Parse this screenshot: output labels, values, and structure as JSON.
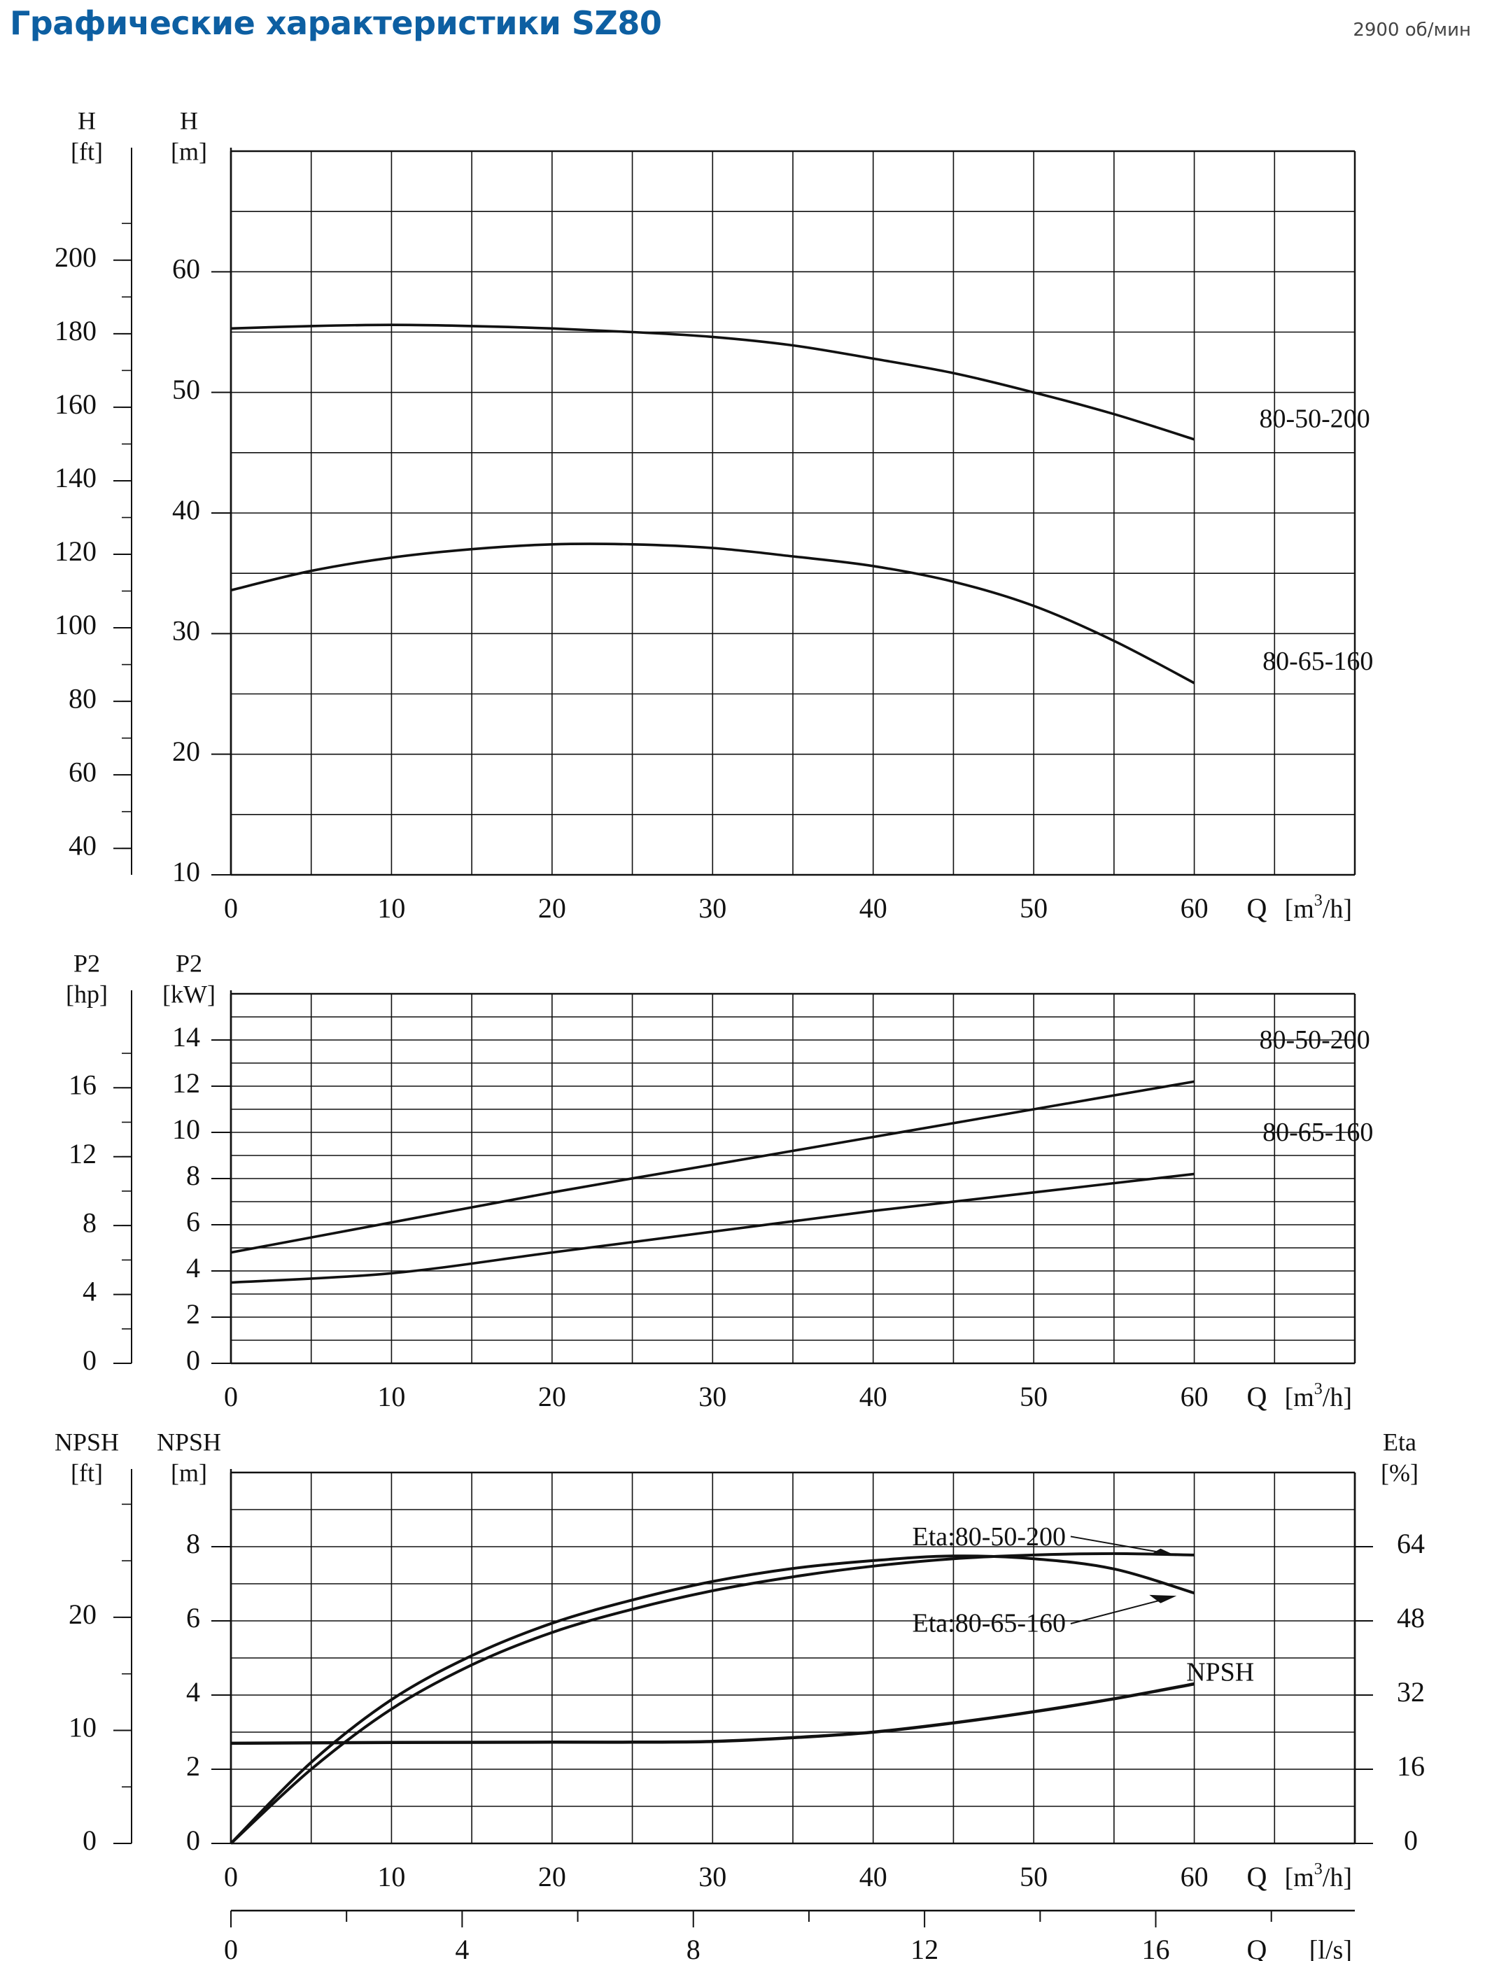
{
  "page": {
    "title": "Графические характеристики SZ80",
    "speed": "2900 об/мин"
  },
  "chart_data": [
    {
      "id": "head",
      "type": "line",
      "x_label": "Q[m3/h]",
      "x_ticks": [
        "0",
        "10",
        "20",
        "30",
        "40",
        "50",
        "60"
      ],
      "xlim": [
        0,
        70
      ],
      "y_label": "H [m]",
      "ylim": [
        10,
        70
      ],
      "y_ticks": [
        "10",
        "20",
        "30",
        "40",
        "50",
        "60"
      ],
      "y2_label": "H [ft]",
      "y2_ticks": [
        "40",
        "60",
        "80",
        "100",
        "120",
        "140",
        "160",
        "180",
        "200"
      ],
      "series": [
        {
          "name": "80-50-200",
          "label": "80-50-200",
          "points": [
            [
              0,
              55.3
            ],
            [
              5,
              55.5
            ],
            [
              10,
              55.6
            ],
            [
              15,
              55.5
            ],
            [
              20,
              55.3
            ],
            [
              25,
              55.0
            ],
            [
              30,
              54.6
            ],
            [
              35,
              53.9
            ],
            [
              40,
              52.8
            ],
            [
              45,
              51.6
            ],
            [
              50,
              50.0
            ],
            [
              55,
              48.2
            ],
            [
              60,
              46.1
            ]
          ]
        },
        {
          "name": "80-65-160",
          "label": "80-65-160",
          "points": [
            [
              0,
              33.6
            ],
            [
              5,
              35.2
            ],
            [
              10,
              36.3
            ],
            [
              15,
              37.0
            ],
            [
              20,
              37.4
            ],
            [
              25,
              37.4
            ],
            [
              30,
              37.1
            ],
            [
              35,
              36.4
            ],
            [
              40,
              35.6
            ],
            [
              45,
              34.3
            ],
            [
              50,
              32.3
            ],
            [
              55,
              29.4
            ],
            [
              60,
              25.9
            ]
          ]
        }
      ]
    },
    {
      "id": "power",
      "type": "line",
      "x_label": "Q[m3/h]",
      "x_ticks": [
        "0",
        "10",
        "20",
        "30",
        "40",
        "50",
        "60"
      ],
      "xlim": [
        0,
        70
      ],
      "y_label": "P2 [kW]",
      "ylim": [
        0,
        16
      ],
      "y_ticks": [
        "0",
        "2",
        "4",
        "6",
        "8",
        "10",
        "12",
        "14"
      ],
      "y2_label": "P2 [hp]",
      "y2_ticks": [
        "0",
        "4",
        "8",
        "12",
        "16"
      ],
      "series": [
        {
          "name": "80-50-200",
          "label": "80-50-200",
          "points": [
            [
              0,
              4.8
            ],
            [
              10,
              6.1
            ],
            [
              20,
              7.4
            ],
            [
              30,
              8.6
            ],
            [
              40,
              9.8
            ],
            [
              50,
              11.0
            ],
            [
              60,
              12.2
            ]
          ]
        },
        {
          "name": "80-65-160",
          "label": "80-65-160",
          "points": [
            [
              0,
              3.5
            ],
            [
              10,
              3.9
            ],
            [
              20,
              4.8
            ],
            [
              30,
              5.7
            ],
            [
              40,
              6.6
            ],
            [
              50,
              7.4
            ],
            [
              60,
              8.2
            ]
          ]
        }
      ]
    },
    {
      "id": "npsh_eta",
      "type": "line",
      "x_label": "Q[m3/h]",
      "x_ticks": [
        "0",
        "10",
        "20",
        "30",
        "40",
        "50",
        "60"
      ],
      "xlim": [
        0,
        70
      ],
      "y_label": "NPSH [m]",
      "ylim": [
        0,
        10
      ],
      "y_ticks": [
        "0",
        "2",
        "4",
        "6",
        "8"
      ],
      "y2_label": "NPSH [ft]",
      "y2_ticks": [
        "0",
        "10",
        "20"
      ],
      "y3_label": "Eta [%]",
      "y3_ticks": [
        "0",
        "16",
        "32",
        "48",
        "64"
      ],
      "x2_label": "Q[l/s]",
      "x2_ticks": [
        "0",
        "4",
        "8",
        "12",
        "16"
      ],
      "series": [
        {
          "name": "NPSH",
          "label": "NPSH",
          "unit": "m",
          "points": [
            [
              0,
              2.7
            ],
            [
              10,
              2.72
            ],
            [
              20,
              2.73
            ],
            [
              25,
              2.73
            ],
            [
              30,
              2.75
            ],
            [
              35,
              2.85
            ],
            [
              40,
              3.0
            ],
            [
              45,
              3.25
            ],
            [
              50,
              3.55
            ],
            [
              55,
              3.9
            ],
            [
              60,
              4.3
            ]
          ]
        },
        {
          "name": "Eta:80-50-200",
          "label": "Eta:80-50-200",
          "unit": "%",
          "points": [
            [
              0,
              0
            ],
            [
              5,
              16
            ],
            [
              10,
              29
            ],
            [
              15,
              38.5
            ],
            [
              20,
              45.5
            ],
            [
              25,
              50.5
            ],
            [
              30,
              54.5
            ],
            [
              35,
              57.5
            ],
            [
              40,
              59.8
            ],
            [
              45,
              61.4
            ],
            [
              50,
              62.2
            ],
            [
              55,
              62.5
            ],
            [
              60,
              62.2
            ]
          ]
        },
        {
          "name": "Eta:80-65-160",
          "label": "Eta:80-65-160",
          "unit": "%",
          "points": [
            [
              0,
              0
            ],
            [
              5,
              17.5
            ],
            [
              10,
              31
            ],
            [
              15,
              40.5
            ],
            [
              20,
              47.5
            ],
            [
              25,
              52.5
            ],
            [
              30,
              56.5
            ],
            [
              35,
              59.3
            ],
            [
              40,
              61.0
            ],
            [
              45,
              62.0
            ],
            [
              50,
              61.4
            ],
            [
              55,
              59.2
            ],
            [
              60,
              54.0
            ]
          ]
        }
      ]
    }
  ]
}
